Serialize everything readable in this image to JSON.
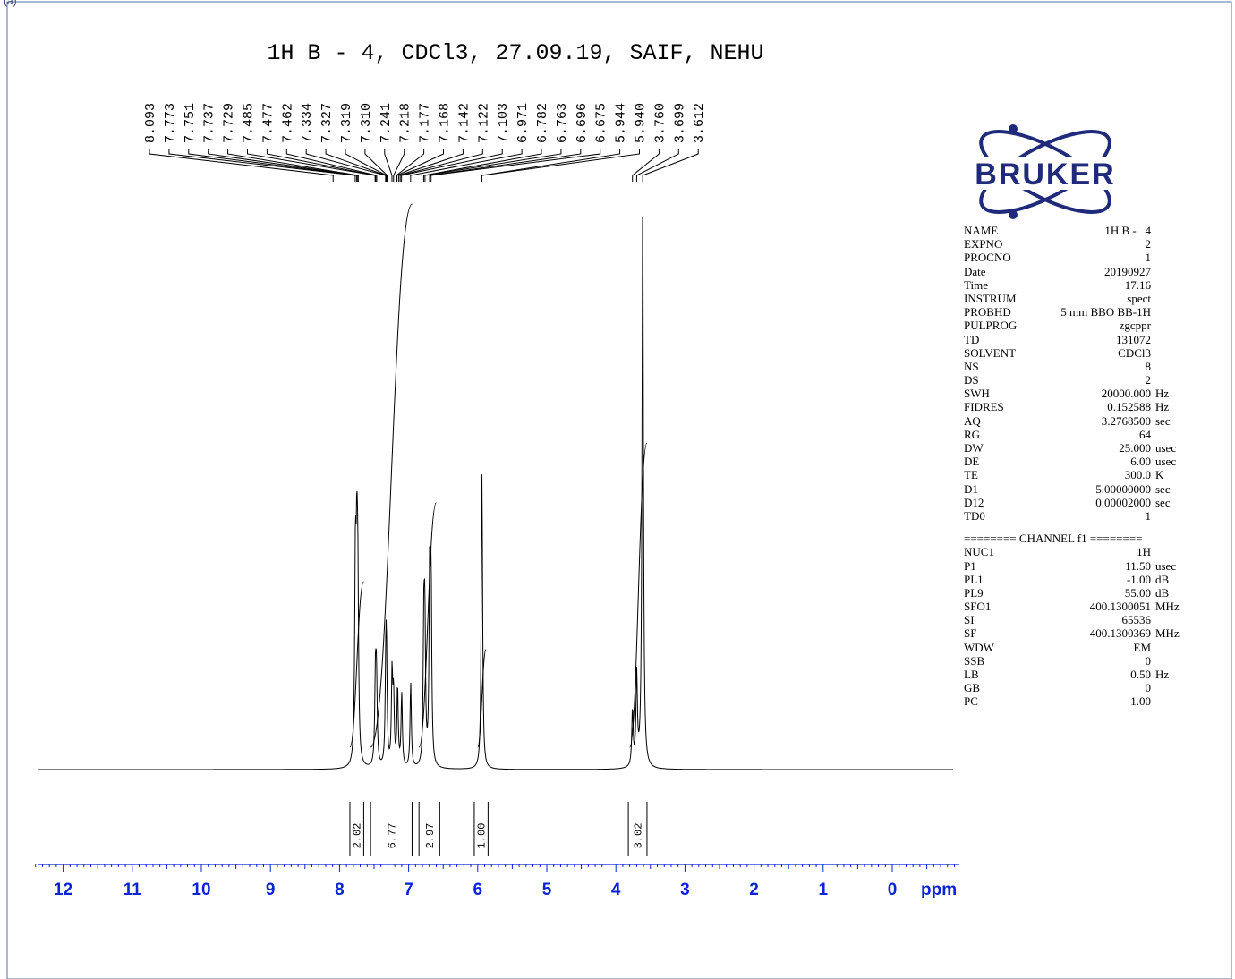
{
  "frame_label": "(a)",
  "logo_text": "BRUKER",
  "chart_data": {
    "type": "line",
    "title": "1H B -   4, CDCl3, 27.09.19, SAIF, NEHU",
    "xlabel": "ppm",
    "ylabel": "",
    "x_axis": {
      "min": -0.9,
      "max": 12.4,
      "reversed": true,
      "ticks": [
        12,
        11,
        10,
        9,
        8,
        7,
        6,
        5,
        4,
        3,
        2,
        1,
        0
      ]
    },
    "peaks": [
      {
        "ppm": 7.77,
        "height": 0.34,
        "width": 0.012
      },
      {
        "ppm": 7.75,
        "height": 0.3,
        "width": 0.012
      },
      {
        "ppm": 7.735,
        "height": 0.28,
        "width": 0.012
      },
      {
        "ppm": 7.48,
        "height": 0.15,
        "width": 0.012
      },
      {
        "ppm": 7.465,
        "height": 0.14,
        "width": 0.012
      },
      {
        "ppm": 7.33,
        "height": 0.16,
        "width": 0.011
      },
      {
        "ppm": 7.32,
        "height": 0.15,
        "width": 0.011
      },
      {
        "ppm": 7.24,
        "height": 0.16,
        "width": 0.011
      },
      {
        "ppm": 7.218,
        "height": 0.12,
        "width": 0.011
      },
      {
        "ppm": 7.16,
        "height": 0.14,
        "width": 0.011
      },
      {
        "ppm": 7.1,
        "height": 0.13,
        "width": 0.011
      },
      {
        "ppm": 6.97,
        "height": 0.15,
        "width": 0.011
      },
      {
        "ppm": 6.78,
        "height": 0.24,
        "width": 0.011
      },
      {
        "ppm": 6.765,
        "height": 0.23,
        "width": 0.011
      },
      {
        "ppm": 6.695,
        "height": 0.33,
        "width": 0.011
      },
      {
        "ppm": 6.675,
        "height": 0.31,
        "width": 0.011
      },
      {
        "ppm": 5.942,
        "height": 0.3,
        "width": 0.011
      },
      {
        "ppm": 5.936,
        "height": 0.26,
        "width": 0.011
      },
      {
        "ppm": 3.76,
        "height": 0.1,
        "width": 0.012
      },
      {
        "ppm": 3.699,
        "height": 0.16,
        "width": 0.012
      },
      {
        "ppm": 3.612,
        "height": 1.0,
        "width": 0.012
      }
    ],
    "peak_labels": [
      "8.093",
      "7.773",
      "7.751",
      "7.737",
      "7.729",
      "7.485",
      "7.477",
      "7.462",
      "7.334",
      "7.327",
      "7.319",
      "7.310",
      "7.241",
      "7.218",
      "7.177",
      "7.168",
      "7.142",
      "7.122",
      "7.103",
      "6.971",
      "6.782",
      "6.763",
      "6.696",
      "6.675",
      "5.944",
      "5.940",
      "3.760",
      "3.699",
      "3.612"
    ],
    "integrals": [
      {
        "label": "2.02",
        "from": 7.85,
        "to": 7.65
      },
      {
        "label": "6.77",
        "from": 7.55,
        "to": 6.95
      },
      {
        "label": "2.97",
        "from": 6.85,
        "to": 6.55
      },
      {
        "label": "1.00",
        "from": 6.05,
        "to": 5.85
      },
      {
        "label": "3.02",
        "from": 3.82,
        "to": 3.55
      }
    ],
    "integral_curves": [
      {
        "ppm_from": 7.85,
        "ppm_to": 7.65,
        "rise": 0.305
      },
      {
        "ppm_from": 7.55,
        "ppm_to": 6.95,
        "rise": 1.0
      },
      {
        "ppm_from": 6.85,
        "ppm_to": 6.6,
        "rise": 0.45
      },
      {
        "ppm_from": 6.0,
        "ppm_to": 5.88,
        "rise": 0.18
      },
      {
        "ppm_from": 3.8,
        "ppm_to": 3.55,
        "rise": 0.56
      }
    ]
  },
  "parameters": [
    {
      "name": "NAME",
      "value": "1H B -   4",
      "unit": ""
    },
    {
      "name": "EXPNO",
      "value": "2",
      "unit": ""
    },
    {
      "name": "PROCNO",
      "value": "1",
      "unit": ""
    },
    {
      "name": "Date_",
      "value": "20190927",
      "unit": ""
    },
    {
      "name": "Time",
      "value": "17.16",
      "unit": ""
    },
    {
      "name": "INSTRUM",
      "value": "spect",
      "unit": ""
    },
    {
      "name": "PROBHD",
      "value": "5 mm BBO BB-1H",
      "unit": ""
    },
    {
      "name": "PULPROG",
      "value": "zgcppr",
      "unit": ""
    },
    {
      "name": "TD",
      "value": "131072",
      "unit": ""
    },
    {
      "name": "SOLVENT",
      "value": "CDCl3",
      "unit": ""
    },
    {
      "name": "NS",
      "value": "8",
      "unit": ""
    },
    {
      "name": "DS",
      "value": "2",
      "unit": ""
    },
    {
      "name": "SWH",
      "value": "20000.000",
      "unit": "Hz"
    },
    {
      "name": "FIDRES",
      "value": "0.152588",
      "unit": "Hz"
    },
    {
      "name": "AQ",
      "value": "3.2768500",
      "unit": "sec"
    },
    {
      "name": "RG",
      "value": "64",
      "unit": ""
    },
    {
      "name": "DW",
      "value": "25.000",
      "unit": "usec"
    },
    {
      "name": "DE",
      "value": "6.00",
      "unit": "usec"
    },
    {
      "name": "TE",
      "value": "300.0",
      "unit": "K"
    },
    {
      "name": "D1",
      "value": "5.00000000",
      "unit": "sec"
    },
    {
      "name": "D12",
      "value": "0.00002000",
      "unit": "sec"
    },
    {
      "name": "TD0",
      "value": "1",
      "unit": ""
    }
  ],
  "channel_header": "======== CHANNEL f1 ========",
  "channel_parameters": [
    {
      "name": "NUC1",
      "value": "1H",
      "unit": ""
    },
    {
      "name": "P1",
      "value": "11.50",
      "unit": "usec"
    },
    {
      "name": "PL1",
      "value": "-1.00",
      "unit": "dB"
    },
    {
      "name": "PL9",
      "value": "55.00",
      "unit": "dB"
    },
    {
      "name": "SFO1",
      "value": "400.1300051",
      "unit": "MHz"
    },
    {
      "name": "SI",
      "value": "65536",
      "unit": ""
    },
    {
      "name": "SF",
      "value": "400.1300369",
      "unit": "MHz"
    },
    {
      "name": "WDW",
      "value": "EM",
      "unit": ""
    },
    {
      "name": "SSB",
      "value": "0",
      "unit": ""
    },
    {
      "name": "LB",
      "value": "0.50",
      "unit": "Hz"
    },
    {
      "name": "GB",
      "value": "0",
      "unit": ""
    },
    {
      "name": "PC",
      "value": "1.00",
      "unit": ""
    }
  ],
  "colors": {
    "axis": "#0a23d6",
    "frame": "#5a6fa0",
    "trace": "#000000",
    "logo": "#1f2a7a"
  }
}
